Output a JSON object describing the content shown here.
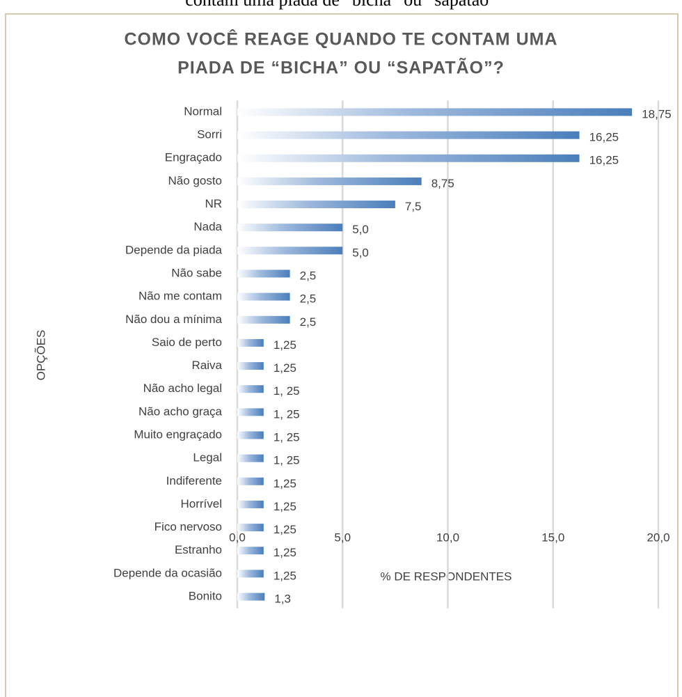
{
  "caption": "contam uma piada de “bicha” ou “sapatão”",
  "chart_data": {
    "type": "barh",
    "title": [
      "COMO VOCÊ REAGE QUANDO TE CONTAM UMA",
      "PIADA DE “BICHA” OU “SAPATÃO”?"
    ],
    "xlabel": "% DE RESPONDENTES",
    "ylabel": "OPÇÕES",
    "categories": [
      "Normal",
      "Sorri",
      "Engraçado",
      "Não gosto",
      "NR",
      "Nada",
      "Depende da piada",
      "Não sabe",
      "Não me contam",
      "Não dou a mínima",
      "Saio de perto",
      "Raiva",
      "Não acho legal",
      "Não acho graça",
      "Muito engraçado",
      "Legal",
      "Indiferente",
      "Horrível",
      "Fico nervoso",
      "Estranho",
      "Depende da ocasião",
      "Bonito"
    ],
    "values": [
      18.75,
      16.25,
      16.25,
      8.75,
      7.5,
      5.0,
      5.0,
      2.5,
      2.5,
      2.5,
      1.25,
      1.25,
      1.25,
      1.25,
      1.25,
      1.25,
      1.25,
      1.25,
      1.25,
      1.25,
      1.25,
      1.3
    ],
    "value_labels": [
      "18,75",
      "16,25",
      "16,25",
      "8,75",
      "7,5",
      "5,0",
      "5,0",
      "2,5",
      "2,5",
      "2,5",
      "1,25",
      "1,25",
      "1, 25",
      "1, 25",
      "1, 25",
      "1, 25",
      "1,25",
      "1,25",
      "1,25",
      "1,25",
      "1,25",
      "1,3"
    ],
    "color": "#4a7ebb",
    "xlim": [
      0,
      20
    ],
    "xticks": [
      {
        "value": 0,
        "label": "0,0"
      },
      {
        "value": 5,
        "label": "5,0"
      },
      {
        "value": 10,
        "label": "10,0"
      },
      {
        "value": 15,
        "label": "15,0"
      },
      {
        "value": 20,
        "label": "20,0"
      }
    ],
    "grid": true
  }
}
